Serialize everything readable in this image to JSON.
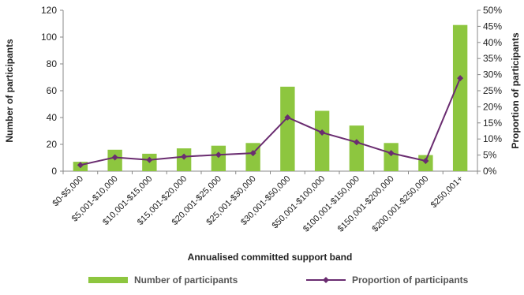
{
  "chart_data": {
    "type": "bar",
    "title": "",
    "xlabel": "Annualised committed support band",
    "ylabel": "Number of participants",
    "y2label": "Proportion of participants",
    "categories": [
      "$0-$5,000",
      "$5,001-$10,000",
      "$10,001-$15,000",
      "$15,001-$20,000",
      "$20,001-$25,000",
      "$25,001-$30,000",
      "$30,001-$50,000",
      "$50,001-$100,000",
      "$100,001-$150,000",
      "$150,001-$200,000",
      "$200,001-$250,000",
      "$250,001+"
    ],
    "series": [
      {
        "name": "Number of participants",
        "type": "bar",
        "axis": "left",
        "color": "#8dc63f",
        "values": [
          7,
          16,
          13,
          17,
          19,
          21,
          63,
          45,
          34,
          21,
          12,
          109
        ]
      },
      {
        "name": "Proportion of participants",
        "type": "line",
        "axis": "right",
        "color": "#6a2c70",
        "values": [
          0.019,
          0.043,
          0.035,
          0.045,
          0.051,
          0.056,
          0.167,
          0.12,
          0.09,
          0.056,
          0.032,
          0.289
        ]
      }
    ],
    "ylim": [
      0,
      120
    ],
    "yticks": [
      0,
      20,
      40,
      60,
      80,
      100,
      120
    ],
    "y2lim": [
      0,
      0.5
    ],
    "y2ticks": [
      "0%",
      "5%",
      "10%",
      "15%",
      "20%",
      "25%",
      "30%",
      "35%",
      "40%",
      "45%",
      "50%"
    ],
    "grid": false,
    "legend": "bottom"
  }
}
